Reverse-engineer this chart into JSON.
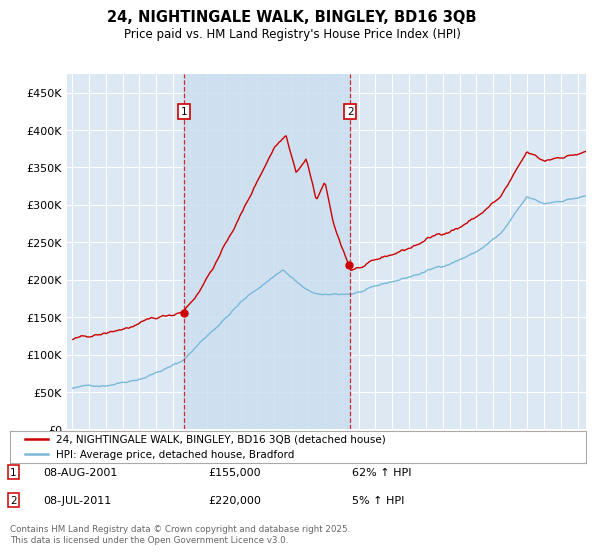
{
  "title_line1": "24, NIGHTINGALE WALK, BINGLEY, BD16 3QB",
  "title_line2": "Price paid vs. HM Land Registry's House Price Index (HPI)",
  "background_color": "#ffffff",
  "plot_bg_color": "#dce9f5",
  "shade_color": "#ccdff0",
  "grid_color": "#ffffff",
  "hpi_color": "#7ab8d9",
  "price_color": "#cc0000",
  "sale1_price": 155000,
  "sale1_year": 2001.625,
  "sale2_price": 220000,
  "sale2_year": 2011.5,
  "sale1_date_str": "08-AUG-2001",
  "sale2_date_str": "08-JUL-2011",
  "sale1_label": "62% ↑ HPI",
  "sale2_label": "5% ↑ HPI",
  "legend_entry1": "24, NIGHTINGALE WALK, BINGLEY, BD16 3QB (detached house)",
  "legend_entry2": "HPI: Average price, detached house, Bradford",
  "footnote": "Contains HM Land Registry data © Crown copyright and database right 2025.\nThis data is licensed under the Open Government Licence v3.0.",
  "ylim": [
    0,
    475000
  ],
  "yticks": [
    0,
    50000,
    100000,
    150000,
    200000,
    250000,
    300000,
    350000,
    400000,
    450000
  ],
  "xmin": 1994.7,
  "xmax": 2025.5
}
